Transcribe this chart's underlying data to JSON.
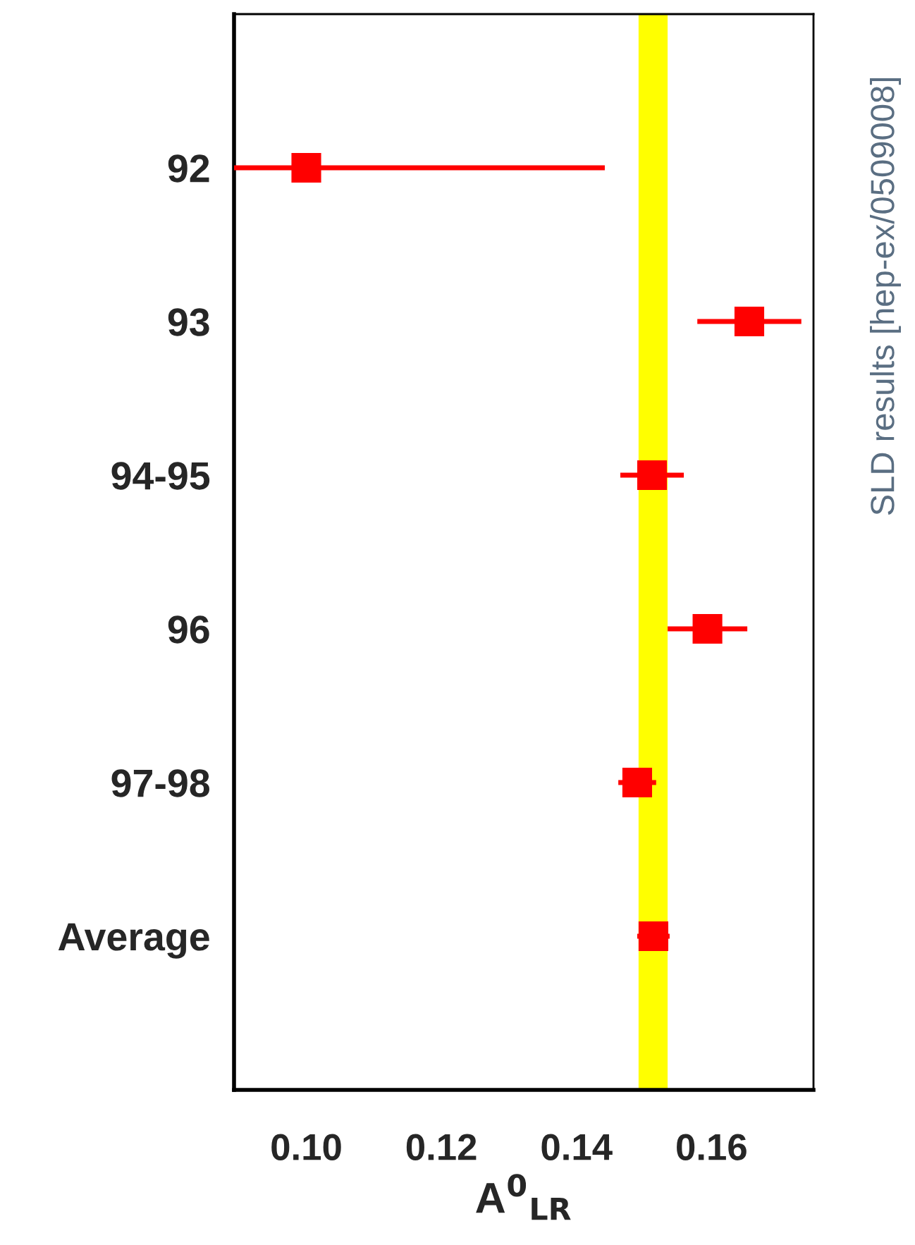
{
  "chart_data": {
    "type": "scatter",
    "orientation": "horizontal",
    "xlabel": "A$^{0}$$_{LR}$",
    "categories": [
      "92",
      "93",
      "94-95",
      "96",
      "97-98",
      "Average"
    ],
    "values": [
      0.1,
      0.1656,
      0.1512,
      0.1594,
      0.149,
      0.1514
    ],
    "errors": [
      [
        0.0893,
        0.1442
      ],
      0.0077,
      0.0047,
      0.0059,
      0.0028,
      0.0024
    ],
    "color": "#ff0000",
    "marker": "square",
    "xlim": [
      0.0893,
      0.1751
    ],
    "xticks": [
      {
        "value": 0.1,
        "label": "0.10"
      },
      {
        "value": 0.12,
        "label": "0.12"
      },
      {
        "value": 0.14,
        "label": "0.14"
      },
      {
        "value": 0.16,
        "label": "0.16"
      }
    ],
    "bands": [
      {
        "axis": "x",
        "from": 0.1492,
        "to": 0.1535,
        "color": "#ffff00"
      }
    ],
    "grid": false,
    "annotations": [
      "SLD results [hep-ex/0509008]"
    ]
  }
}
